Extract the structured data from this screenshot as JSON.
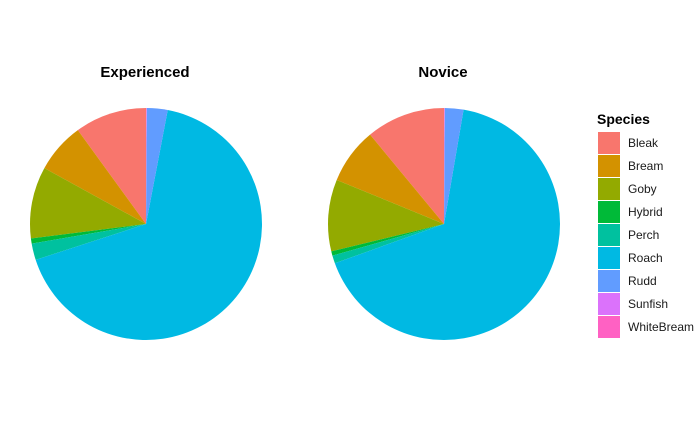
{
  "chart_data": {
    "type": "pie",
    "legend": {
      "title": "Species",
      "position": "right",
      "items": [
        {
          "label": "Bleak",
          "color": "#F8766D"
        },
        {
          "label": "Bream",
          "color": "#D39200"
        },
        {
          "label": "Goby",
          "color": "#93AA00"
        },
        {
          "label": "Hybrid",
          "color": "#00BA38"
        },
        {
          "label": "Perch",
          "color": "#00C19F"
        },
        {
          "label": "Roach",
          "color": "#00B9E3"
        },
        {
          "label": "Rudd",
          "color": "#619CFF"
        },
        {
          "label": "Sunfish",
          "color": "#DB72FB"
        },
        {
          "label": "WhiteBream",
          "color": "#FF61C3"
        }
      ]
    },
    "facets": [
      {
        "title": "Experienced",
        "slices": [
          {
            "category": "Bleak",
            "value": 10.0
          },
          {
            "category": "Bream",
            "value": 7.0
          },
          {
            "category": "Goby",
            "value": 10.0
          },
          {
            "category": "Hybrid",
            "value": 0.7
          },
          {
            "category": "Perch",
            "value": 2.3
          },
          {
            "category": "Roach",
            "value": 67.0
          },
          {
            "category": "Rudd",
            "value": 2.9
          },
          {
            "category": "Sunfish",
            "value": 0.05
          },
          {
            "category": "WhiteBream",
            "value": 0.05
          }
        ]
      },
      {
        "title": "Novice",
        "slices": [
          {
            "category": "Bleak",
            "value": 11.0
          },
          {
            "category": "Bream",
            "value": 7.8
          },
          {
            "category": "Goby",
            "value": 10.0
          },
          {
            "category": "Hybrid",
            "value": 0.6
          },
          {
            "category": "Perch",
            "value": 1.1
          },
          {
            "category": "Roach",
            "value": 66.8
          },
          {
            "category": "Rudd",
            "value": 2.6
          },
          {
            "category": "Sunfish",
            "value": 0.05
          },
          {
            "category": "WhiteBream",
            "value": 0.05
          }
        ]
      }
    ]
  }
}
